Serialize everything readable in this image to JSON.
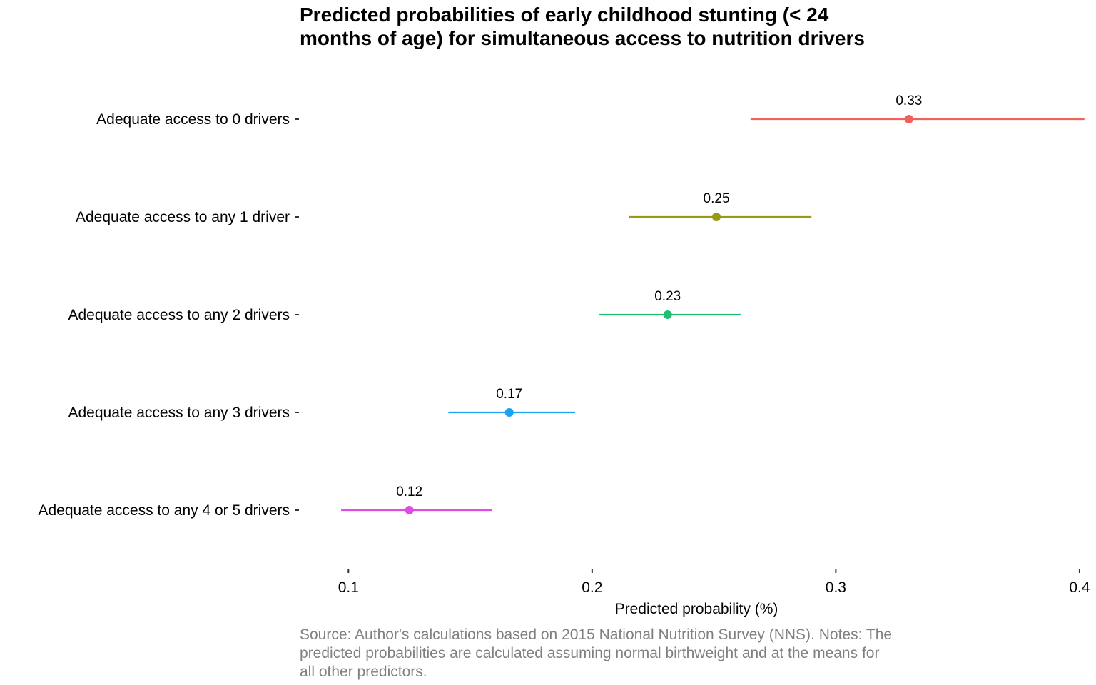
{
  "chart_data": {
    "type": "dot-errorbar",
    "title_lines": [
      "Predicted probabilities of early childhood stunting (< 24",
      "months of age) for simultaneous access to nutrition drivers"
    ],
    "xlabel": "Predicted probability (%)",
    "ylabel": "",
    "xlim": [
      0.08,
      0.405
    ],
    "xticks": [
      0.1,
      0.2,
      0.3,
      0.4
    ],
    "xtick_labels": [
      "0.1",
      "0.2",
      "0.3",
      "0.4"
    ],
    "grid": false,
    "legend": "none",
    "categories": [
      "Adequate access to 0 drivers",
      "Adequate access to any 1 driver",
      "Adequate access to any 2 drivers",
      "Adequate access to any 3 drivers",
      "Adequate access to any 4 or 5 drivers"
    ],
    "values": [
      0.33,
      0.251,
      0.231,
      0.166,
      0.125
    ],
    "lower": [
      0.265,
      0.215,
      0.203,
      0.141,
      0.097
    ],
    "upper": [
      0.402,
      0.29,
      0.261,
      0.193,
      0.159
    ],
    "value_labels": [
      "0.33",
      "0.25",
      "0.23",
      "0.17",
      "0.12"
    ],
    "colors": [
      "#F0605D",
      "#9A9A12",
      "#22BE74",
      "#1DA1F2",
      "#E14AE8"
    ],
    "caption_lines": [
      "Source: Author's calculations based on 2015 National Nutrition Survey (NNS). Notes: The",
      "predicted probabilities are calculated assuming normal birthweight and at the means for",
      "all other predictors."
    ]
  }
}
